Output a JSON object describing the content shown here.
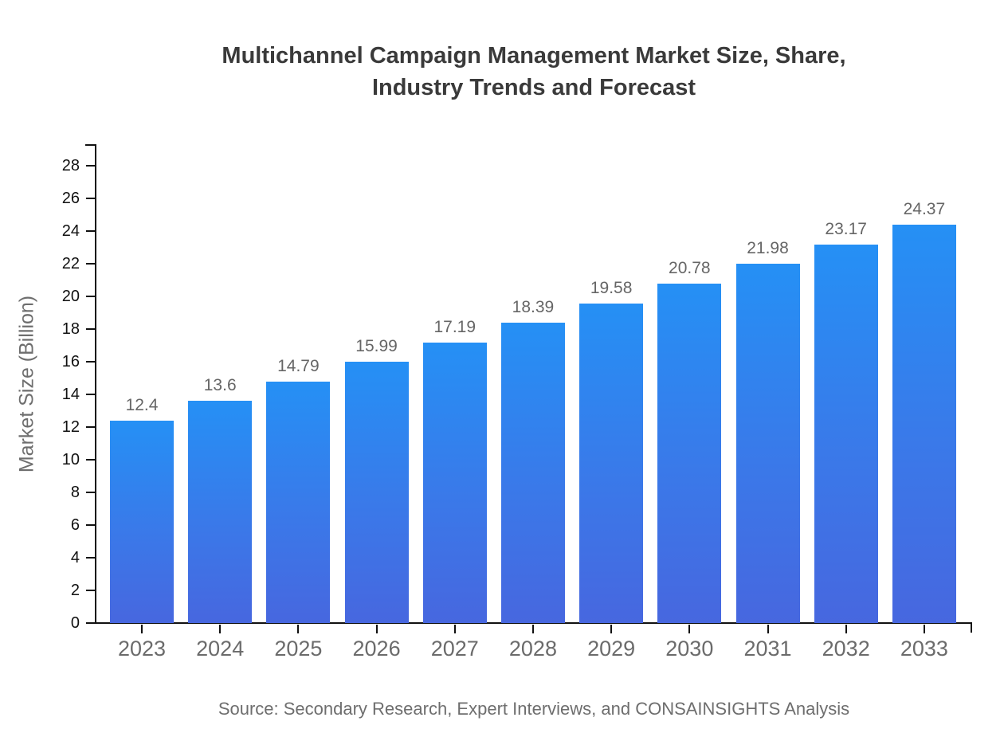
{
  "title": {
    "line1": "Multichannel Campaign Management Market Size, Share,",
    "line2": "Industry Trends and Forecast"
  },
  "y_axis": {
    "label": "Market Size (Billion)"
  },
  "source": "Source: Secondary Research, Expert Interviews, and CONSAINSIGHTS Analysis",
  "colors": {
    "bar_gradient_top": "#2590f5",
    "bar_gradient_bottom": "#4767df",
    "title_text": "#3a3a3a",
    "value_label_text": "#666666",
    "year_label_text": "#6b6b6b",
    "y_tick_text": "#111111",
    "axis_line": "#111111",
    "axis_title_text": "#6e6e6e",
    "source_text": "#6e6e6e",
    "background": "#ffffff"
  },
  "chart_data": {
    "type": "bar",
    "title": "Multichannel Campaign Management Market Size, Share, Industry Trends and Forecast",
    "categories": [
      "2023",
      "2024",
      "2025",
      "2026",
      "2027",
      "2028",
      "2029",
      "2030",
      "2031",
      "2032",
      "2033"
    ],
    "values": [
      12.4,
      13.6,
      14.79,
      15.99,
      17.19,
      18.39,
      19.58,
      20.78,
      21.98,
      23.17,
      24.37
    ],
    "value_labels": [
      "12.4",
      "13.6",
      "14.79",
      "15.99",
      "17.19",
      "18.39",
      "19.58",
      "20.78",
      "21.98",
      "23.17",
      "24.37"
    ],
    "xlabel": "",
    "ylabel": "Market Size (Billion)",
    "ylim": [
      0,
      28
    ],
    "y_ticks": [
      0,
      2,
      4,
      6,
      8,
      10,
      12,
      14,
      16,
      18,
      20,
      22,
      24,
      26,
      28
    ],
    "grid": false,
    "legend": "none",
    "bar_value_labels_shown": true,
    "source_note": "Source: Secondary Research, Expert Interviews, and CONSAINSIGHTS Analysis"
  }
}
